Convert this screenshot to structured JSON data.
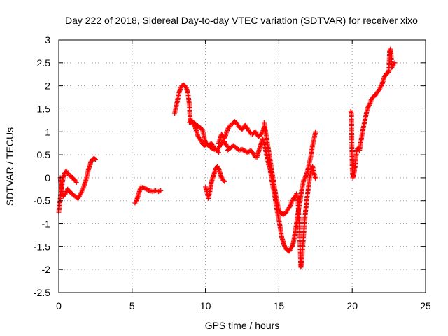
{
  "chart_data": {
    "type": "scatter",
    "title": "Day 222 of 2018, Sidereal Day-to-day VTEC variation (SDTVAR) for receiver xixo",
    "xlabel": "GPS time / hours",
    "ylabel": "SDTVAR / TECUs",
    "xlim": [
      0,
      25
    ],
    "ylim": [
      -2.5,
      3
    ],
    "xticks": [
      "0",
      "5",
      "10",
      "15",
      "20",
      "25"
    ],
    "yticks": [
      "-2.5",
      "-2",
      "-1.5",
      "-1",
      "-0.5",
      "0",
      "0.5",
      "1",
      "1.5",
      "2",
      "2.5",
      "3"
    ],
    "grid": true,
    "marker": "plus",
    "color": "#ff0000",
    "segments": [
      [
        [
          0.0,
          -0.75
        ],
        [
          0.05,
          -0.6
        ],
        [
          0.1,
          -0.45
        ],
        [
          0.2,
          -0.2
        ],
        [
          0.3,
          0.0
        ],
        [
          0.4,
          0.1
        ],
        [
          0.5,
          0.15
        ],
        [
          0.6,
          0.1
        ],
        [
          0.7,
          0.05
        ],
        [
          0.8,
          0.05
        ],
        [
          0.9,
          0.0
        ],
        [
          1.0,
          -0.02
        ],
        [
          1.1,
          -0.05
        ],
        [
          1.2,
          -0.1
        ]
      ],
      [
        [
          0.1,
          0.0
        ],
        [
          0.2,
          -0.3
        ],
        [
          0.3,
          -0.4
        ],
        [
          0.45,
          -0.35
        ],
        [
          0.6,
          -0.25
        ],
        [
          0.75,
          -0.3
        ],
        [
          0.9,
          -0.35
        ],
        [
          1.1,
          -0.4
        ],
        [
          1.3,
          -0.45
        ],
        [
          1.5,
          -0.35
        ],
        [
          1.7,
          -0.2
        ],
        [
          1.8,
          -0.1
        ],
        [
          1.9,
          0.0
        ],
        [
          2.0,
          0.15
        ],
        [
          2.1,
          0.25
        ],
        [
          2.2,
          0.35
        ],
        [
          2.3,
          0.4
        ],
        [
          2.4,
          0.42
        ],
        [
          2.5,
          0.4
        ]
      ],
      [
        [
          5.2,
          -0.55
        ],
        [
          5.3,
          -0.5
        ],
        [
          5.4,
          -0.4
        ],
        [
          5.5,
          -0.3
        ],
        [
          5.6,
          -0.2
        ],
        [
          5.8,
          -0.22
        ],
        [
          6.0,
          -0.25
        ],
        [
          6.2,
          -0.28
        ],
        [
          6.4,
          -0.3
        ],
        [
          6.6,
          -0.28
        ],
        [
          6.8,
          -0.3
        ],
        [
          6.95,
          -0.28
        ]
      ],
      [
        [
          7.9,
          1.4
        ],
        [
          8.0,
          1.55
        ],
        [
          8.1,
          1.7
        ],
        [
          8.2,
          1.85
        ],
        [
          8.3,
          1.95
        ],
        [
          8.4,
          2.0
        ],
        [
          8.5,
          2.02
        ],
        [
          8.6,
          2.0
        ],
        [
          8.7,
          1.95
        ],
        [
          8.8,
          1.85
        ],
        [
          8.9,
          1.6
        ],
        [
          8.95,
          1.3
        ],
        [
          9.0,
          1.2
        ],
        [
          9.1,
          1.2
        ],
        [
          9.2,
          1.15
        ],
        [
          9.3,
          1.1
        ],
        [
          9.4,
          1.0
        ],
        [
          9.5,
          0.9
        ],
        [
          9.6,
          0.85
        ],
        [
          9.7,
          0.8
        ],
        [
          9.8,
          0.75
        ],
        [
          9.9,
          0.7
        ],
        [
          10.0,
          0.72
        ],
        [
          10.1,
          0.75
        ],
        [
          10.2,
          0.7
        ],
        [
          10.3,
          0.72
        ],
        [
          10.4,
          0.75
        ],
        [
          10.5,
          0.7
        ],
        [
          10.6,
          0.65
        ],
        [
          10.7,
          0.62
        ],
        [
          10.8,
          0.6
        ],
        [
          10.9,
          0.65
        ],
        [
          11.0,
          0.7
        ],
        [
          11.1,
          0.75
        ],
        [
          11.2,
          0.8
        ],
        [
          11.3,
          0.78
        ],
        [
          11.4,
          0.72
        ],
        [
          11.5,
          0.68
        ]
      ],
      [
        [
          8.9,
          1.2
        ],
        [
          9.0,
          1.25
        ],
        [
          9.2,
          1.2
        ],
        [
          9.4,
          1.15
        ],
        [
          9.6,
          1.1
        ],
        [
          9.8,
          1.05
        ],
        [
          9.9,
          0.9
        ],
        [
          10.0,
          0.75
        ],
        [
          10.2,
          0.7
        ],
        [
          10.4,
          0.65
        ],
        [
          10.6,
          0.62
        ],
        [
          10.8,
          0.6
        ],
        [
          10.9,
          0.55
        ]
      ],
      [
        [
          10.0,
          -0.2
        ],
        [
          10.1,
          -0.3
        ],
        [
          10.2,
          -0.45
        ],
        [
          10.3,
          -0.3
        ],
        [
          10.4,
          -0.1
        ],
        [
          10.5,
          0.0
        ],
        [
          10.6,
          0.1
        ],
        [
          10.7,
          0.2
        ],
        [
          10.8,
          0.25
        ],
        [
          10.9,
          0.2
        ],
        [
          11.0,
          0.1
        ],
        [
          11.1,
          0.0
        ],
        [
          11.2,
          -0.05
        ],
        [
          11.3,
          -0.08
        ]
      ],
      [
        [
          10.9,
          0.75
        ],
        [
          11.0,
          0.85
        ],
        [
          11.1,
          0.95
        ],
        [
          11.2,
          0.9
        ],
        [
          11.3,
          0.85
        ],
        [
          11.4,
          0.95
        ],
        [
          11.5,
          1.05
        ],
        [
          11.6,
          1.1
        ],
        [
          11.7,
          1.15
        ],
        [
          11.8,
          1.15
        ],
        [
          11.9,
          1.2
        ],
        [
          12.0,
          1.22
        ],
        [
          12.1,
          1.2
        ],
        [
          12.2,
          1.15
        ],
        [
          12.3,
          1.1
        ],
        [
          12.4,
          1.08
        ],
        [
          12.5,
          1.05
        ],
        [
          12.6,
          1.1
        ],
        [
          12.7,
          1.15
        ],
        [
          12.8,
          1.1
        ],
        [
          12.9,
          1.05
        ],
        [
          13.0,
          1.0
        ],
        [
          13.1,
          0.95
        ],
        [
          13.2,
          0.95
        ],
        [
          13.3,
          0.98
        ],
        [
          13.4,
          1.0
        ],
        [
          13.5,
          0.95
        ],
        [
          13.6,
          0.9
        ],
        [
          13.7,
          0.92
        ],
        [
          13.8,
          0.95
        ],
        [
          13.9,
          1.0
        ],
        [
          14.0,
          1.1
        ],
        [
          14.1,
          1.0
        ]
      ],
      [
        [
          11.5,
          0.6
        ],
        [
          11.7,
          0.65
        ],
        [
          11.9,
          0.7
        ],
        [
          12.1,
          0.65
        ],
        [
          12.3,
          0.6
        ],
        [
          12.5,
          0.62
        ],
        [
          12.7,
          0.58
        ],
        [
          12.9,
          0.55
        ],
        [
          13.1,
          0.6
        ],
        [
          13.2,
          0.55
        ],
        [
          13.3,
          0.5
        ],
        [
          13.4,
          0.45
        ],
        [
          13.5,
          0.45
        ],
        [
          13.6,
          0.55
        ],
        [
          13.7,
          0.65
        ],
        [
          13.8,
          0.75
        ],
        [
          13.9,
          0.85
        ],
        [
          14.0,
          0.75
        ],
        [
          14.1,
          0.6
        ],
        [
          14.2,
          0.45
        ],
        [
          14.3,
          0.3
        ],
        [
          14.4,
          0.2
        ],
        [
          14.5,
          0.0
        ],
        [
          14.6,
          -0.2
        ],
        [
          14.7,
          -0.35
        ],
        [
          14.8,
          -0.55
        ],
        [
          14.9,
          -0.75
        ],
        [
          15.0,
          -0.9
        ],
        [
          15.1,
          -1.1
        ],
        [
          15.2,
          -1.3
        ],
        [
          15.3,
          -1.4
        ],
        [
          15.4,
          -1.5
        ],
        [
          15.5,
          -1.55
        ],
        [
          15.6,
          -1.58
        ],
        [
          15.7,
          -1.6
        ],
        [
          15.8,
          -1.55
        ],
        [
          15.9,
          -1.5
        ],
        [
          16.0,
          -1.4
        ],
        [
          16.1,
          -1.2
        ],
        [
          16.2,
          -1.0
        ],
        [
          16.3,
          -0.8
        ],
        [
          16.4,
          -0.6
        ],
        [
          16.5,
          -0.4
        ],
        [
          16.6,
          -0.2
        ],
        [
          16.7,
          -0.05
        ],
        [
          16.8,
          0.0
        ],
        [
          16.9,
          0.1
        ],
        [
          17.0,
          0.2
        ],
        [
          17.1,
          0.35
        ],
        [
          17.2,
          0.5
        ],
        [
          17.3,
          0.7
        ],
        [
          17.4,
          0.85
        ],
        [
          17.5,
          1.0
        ]
      ],
      [
        [
          14.0,
          1.2
        ],
        [
          14.1,
          1.0
        ],
        [
          14.2,
          0.8
        ],
        [
          14.3,
          0.6
        ],
        [
          14.4,
          0.4
        ],
        [
          14.5,
          0.2
        ],
        [
          14.6,
          0.0
        ],
        [
          14.7,
          -0.2
        ],
        [
          14.8,
          -0.4
        ],
        [
          14.9,
          -0.55
        ],
        [
          15.0,
          -0.7
        ],
        [
          15.1,
          -0.75
        ],
        [
          15.2,
          -0.78
        ],
        [
          15.3,
          -0.8
        ],
        [
          15.4,
          -0.78
        ],
        [
          15.5,
          -0.75
        ],
        [
          15.6,
          -0.7
        ],
        [
          15.7,
          -0.65
        ],
        [
          15.8,
          -0.6
        ],
        [
          15.9,
          -0.5
        ],
        [
          16.0,
          -0.45
        ],
        [
          16.1,
          -0.4
        ],
        [
          16.2,
          -0.35
        ],
        [
          16.3,
          -0.5
        ],
        [
          16.4,
          -1.0
        ],
        [
          16.45,
          -1.5
        ],
        [
          16.5,
          -1.95
        ],
        [
          16.55,
          -1.85
        ],
        [
          16.6,
          -1.6
        ],
        [
          16.7,
          -1.2
        ],
        [
          16.8,
          -0.8
        ],
        [
          16.9,
          -0.5
        ],
        [
          17.0,
          -0.25
        ],
        [
          17.1,
          0.0
        ],
        [
          17.2,
          0.15
        ],
        [
          17.3,
          0.25
        ],
        [
          17.4,
          0.1
        ],
        [
          17.5,
          -0.02
        ]
      ],
      [
        [
          19.9,
          1.45
        ],
        [
          19.95,
          1.4
        ],
        [
          20.0,
          0.2
        ],
        [
          20.05,
          0.0
        ],
        [
          20.1,
          0.05
        ],
        [
          20.2,
          0.25
        ],
        [
          20.3,
          0.6
        ],
        [
          20.4,
          0.65
        ],
        [
          20.5,
          0.6
        ],
        [
          20.6,
          0.8
        ],
        [
          20.7,
          1.0
        ],
        [
          20.8,
          1.15
        ],
        [
          20.9,
          1.3
        ],
        [
          21.0,
          1.45
        ],
        [
          21.1,
          1.55
        ],
        [
          21.2,
          1.6
        ],
        [
          21.3,
          1.7
        ],
        [
          21.4,
          1.75
        ],
        [
          21.5,
          1.78
        ],
        [
          21.6,
          1.8
        ],
        [
          21.7,
          1.85
        ],
        [
          21.8,
          1.9
        ],
        [
          21.9,
          1.95
        ],
        [
          22.0,
          2.0
        ],
        [
          22.1,
          2.1
        ],
        [
          22.2,
          2.2
        ],
        [
          22.3,
          2.25
        ],
        [
          22.4,
          2.28
        ],
        [
          22.5,
          2.3
        ],
        [
          22.55,
          2.75
        ],
        [
          22.6,
          2.8
        ],
        [
          22.65,
          2.7
        ],
        [
          22.7,
          2.4
        ],
        [
          22.8,
          2.45
        ],
        [
          22.9,
          2.5
        ]
      ]
    ]
  }
}
